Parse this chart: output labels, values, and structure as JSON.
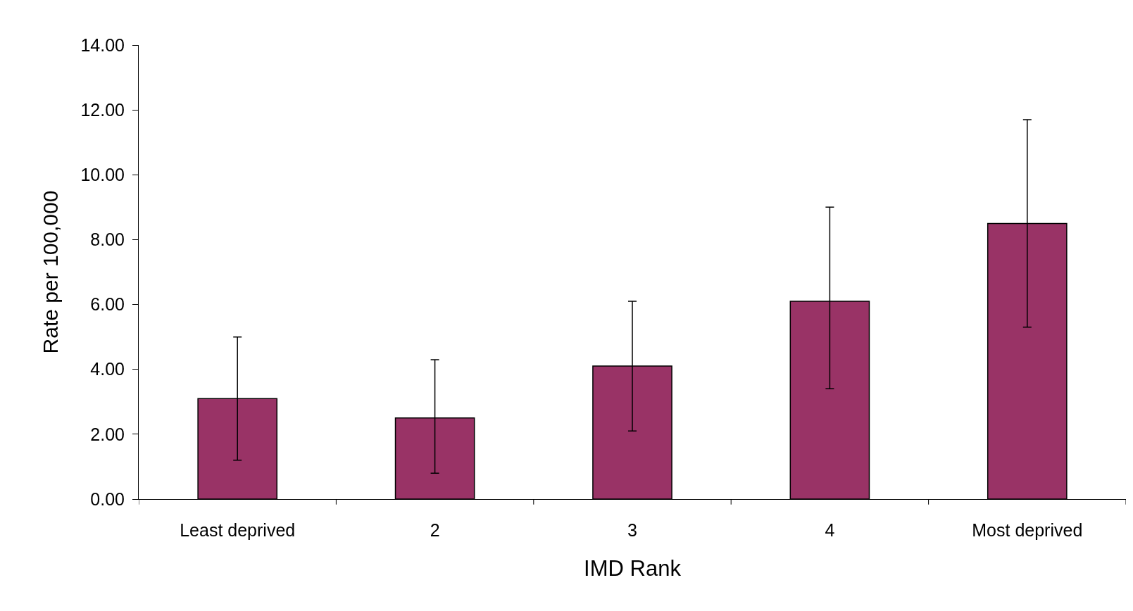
{
  "chart_data": {
    "type": "bar",
    "xlabel": "IMD Rank",
    "ylabel": "Rate per 100,000",
    "categories": [
      "Least deprived",
      "2",
      "3",
      "4",
      "Most deprived"
    ],
    "values": [
      3.1,
      2.5,
      4.1,
      6.1,
      8.5
    ],
    "errors": [
      [
        1.2,
        5.0
      ],
      [
        0.8,
        4.3
      ],
      [
        2.1,
        6.1
      ],
      [
        3.4,
        9.0
      ],
      [
        5.3,
        11.7
      ]
    ],
    "color": "#993366",
    "ylim": [
      0,
      14
    ],
    "yticks": [
      {
        "value": 0,
        "label": "0.00"
      },
      {
        "value": 2,
        "label": "2.00"
      },
      {
        "value": 4,
        "label": "4.00"
      },
      {
        "value": 6,
        "label": "6.00"
      },
      {
        "value": 8,
        "label": "8.00"
      },
      {
        "value": 10,
        "label": "10.00"
      },
      {
        "value": 12,
        "label": "12.00"
      },
      {
        "value": 14,
        "label": "14.00"
      }
    ]
  }
}
